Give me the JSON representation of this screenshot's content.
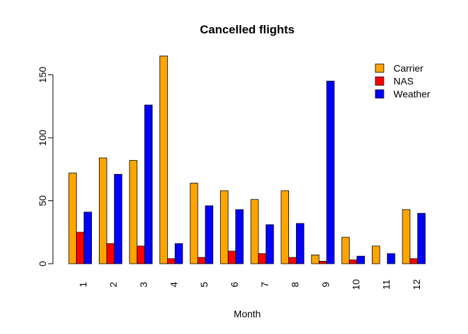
{
  "chart_data": {
    "type": "bar",
    "title": "Cancelled flights",
    "xlabel": "Month",
    "ylabel": "",
    "categories": [
      "1",
      "2",
      "3",
      "4",
      "5",
      "6",
      "7",
      "8",
      "9",
      "10",
      "11",
      "12"
    ],
    "series": [
      {
        "name": "Carrier",
        "color": "#FFA500",
        "values": [
          72,
          84,
          82,
          165,
          64,
          58,
          51,
          58,
          7,
          21,
          14,
          43
        ]
      },
      {
        "name": "NAS",
        "color": "#FF0000",
        "values": [
          25,
          16,
          14,
          4,
          5,
          10,
          8,
          5,
          2,
          3,
          0,
          4
        ]
      },
      {
        "name": "Weather",
        "color": "#0000FF",
        "values": [
          41,
          71,
          126,
          16,
          46,
          43,
          31,
          32,
          145,
          6,
          8,
          40
        ]
      }
    ],
    "ylim": [
      0,
      165
    ],
    "yticks": [
      0,
      50,
      100,
      150
    ],
    "grid": false,
    "legend_position": "top-right"
  }
}
